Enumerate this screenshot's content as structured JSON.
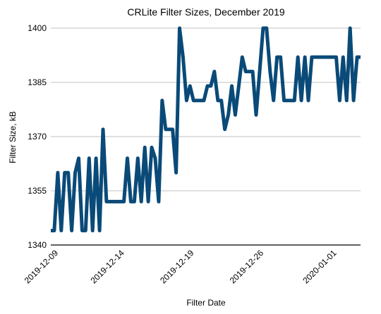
{
  "chart_data": {
    "type": "line",
    "title": "CRLite Filter Sizes, December 2019",
    "xlabel": "Filter Date",
    "ylabel": "Filter Size, kB",
    "ylim": [
      1340,
      1400
    ],
    "yticks": [
      1340,
      1355,
      1370,
      1385,
      1400
    ],
    "xticks": [
      "2019-12-09",
      "2019-12-14",
      "2019-12-19",
      "2019-12-26",
      "2020-01-01"
    ],
    "grid": "horizontal",
    "legend": "none",
    "colors": {
      "series": "#0a4a78",
      "grid": "#c0c0c0",
      "axis": "#000000"
    },
    "series": [
      {
        "values": [
          1344,
          1344,
          1360,
          1344,
          1360,
          1360,
          1344,
          1360,
          1364,
          1344,
          1344,
          1364,
          1344,
          1364,
          1344,
          1372,
          1352,
          1352,
          1352,
          1352,
          1352,
          1352,
          1364,
          1352,
          1352,
          1364,
          1352,
          1367,
          1352,
          1367,
          1364,
          1352,
          1380,
          1372,
          1372,
          1372,
          1360,
          1400,
          1392,
          1380,
          1384,
          1380,
          1380,
          1380,
          1380,
          1384,
          1384,
          1388,
          1380,
          1380,
          1372,
          1376,
          1384,
          1376,
          1384,
          1392,
          1388,
          1388,
          1388,
          1376,
          1388,
          1400,
          1400,
          1388,
          1380,
          1392,
          1392,
          1380,
          1380,
          1380,
          1380,
          1392,
          1380,
          1392,
          1380,
          1392,
          1392,
          1392,
          1392,
          1392,
          1392,
          1392,
          1392,
          1380,
          1392,
          1380,
          1400,
          1380,
          1392,
          1392
        ]
      }
    ],
    "xtick_index": [
      1,
      20,
      40,
      60,
      81
    ]
  }
}
